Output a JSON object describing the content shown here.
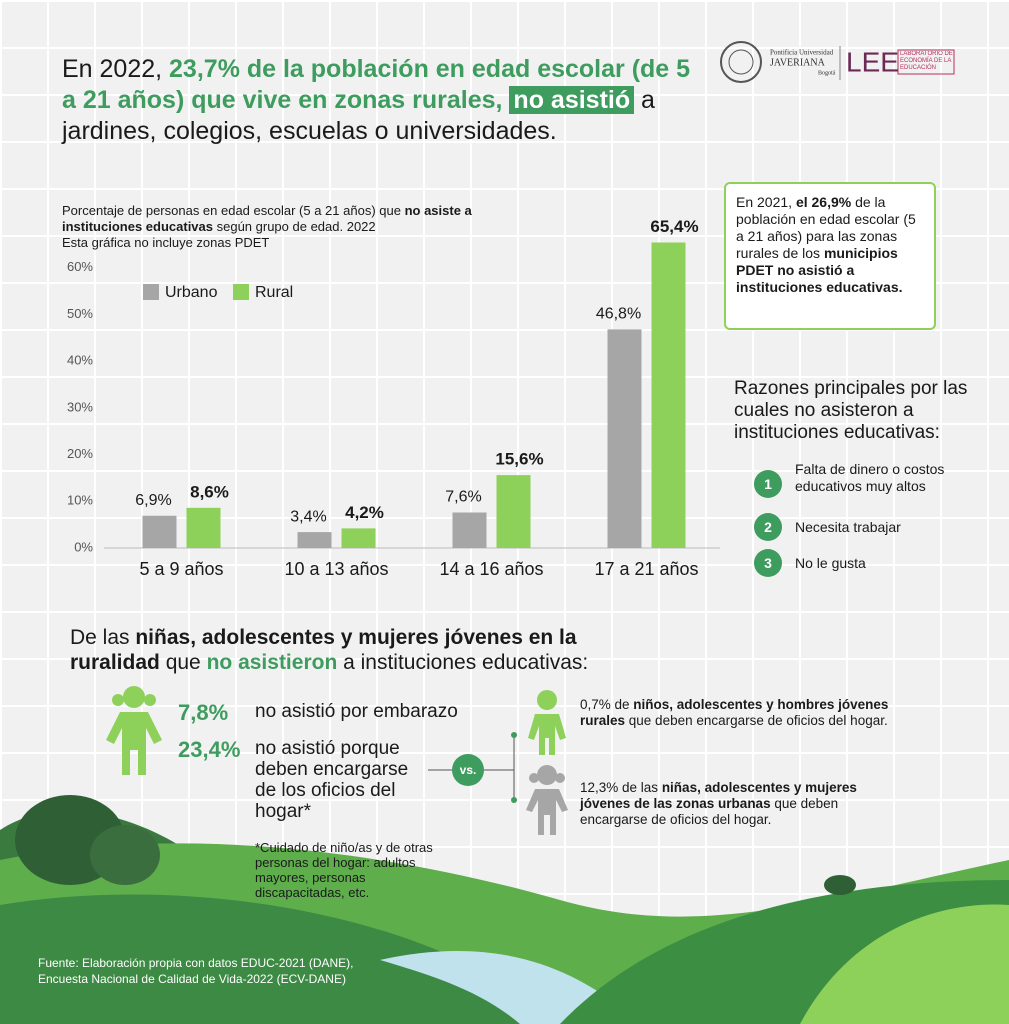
{
  "header": {
    "title_parts": [
      "En 2022, ",
      "23,7% de la población en edad escolar (de 5 a 21 años) que vive en zonas rurales,",
      "no asistió",
      " a jardines, colegios, escuelas o universidades."
    ]
  },
  "logos": {
    "university_top": "Pontificia Universidad",
    "university": "JAVERIANA",
    "city": "Bogotá",
    "lab": "LEE",
    "lab_name": "LABORATORIO DE ECONOMÍA DE LA EDUCACIÓN"
  },
  "chart_data": {
    "type": "bar",
    "subtitle_parts": [
      "Porcentaje de personas en edad escolar (5 a 21 años) que ",
      "no asiste a instituciones educativas",
      " según grupo de edad. 2022"
    ],
    "note": "Esta gráfica no incluye zonas PDET",
    "categories": [
      "5 a 9 años",
      "10 a 13 años",
      "14 a 16 años",
      "17 a 21 años"
    ],
    "series": [
      {
        "name": "Urbano",
        "color": "#a6a6a6",
        "values": [
          6.9,
          3.4,
          7.6,
          46.8
        ],
        "value_labels": [
          "6,9%",
          "3,4%",
          "7,6%",
          "46,8%"
        ]
      },
      {
        "name": "Rural",
        "color": "#8ed15a",
        "values": [
          8.6,
          4.2,
          15.6,
          65.4
        ],
        "value_labels": [
          "8,6%",
          "4,2%",
          "15,6%",
          "65,4%"
        ]
      }
    ],
    "ylim": [
      0,
      70
    ],
    "yticks": [
      {
        "value": 0,
        "label": "0%"
      },
      {
        "value": 10,
        "label": "10%"
      },
      {
        "value": 20,
        "label": "20%"
      },
      {
        "value": 30,
        "label": "30%"
      },
      {
        "value": 40,
        "label": "40%"
      },
      {
        "value": 50,
        "label": "50%"
      },
      {
        "value": 60,
        "label": "60%"
      }
    ],
    "legend": "upper left"
  },
  "note2021": {
    "parts": [
      "En 2021, ",
      "el 26,9%",
      " de la población en edad escolar (5 a 21 años) para las zonas rurales de los ",
      "municipios PDET no asistió a instituciones educativas."
    ]
  },
  "reasons": {
    "title": "Razones principales por las cuales no asisteron a instituciones educativas:",
    "items": [
      {
        "number": "1",
        "text": "Falta de dinero o costos educativos muy altos"
      },
      {
        "number": "2",
        "text": "Necesita trabajar"
      },
      {
        "number": "3",
        "text": "No le gusta"
      }
    ]
  },
  "section2": {
    "title_parts": [
      "De las ",
      "niñas, adolescentes y mujeres jóvenes en la ruralidad",
      " que ",
      "no asistieron",
      " a instituciones educativas:"
    ],
    "stats": [
      {
        "value": "7,8%",
        "text": "no asistió por embarazo"
      },
      {
        "value": "23,4%",
        "text": "no asistió porque deben encargarse de los oficios del hogar*"
      }
    ],
    "footnote": "*Cuidado de niño/as y de otras personas del hogar: adultos mayores, personas discapacitadas, etc.",
    "vs": "vs.",
    "compare": [
      [
        "0,7% de ",
        "niños, adolescentes y hombres jóvenes rurales",
        " que deben encargarse de oficios del hogar."
      ],
      [
        "12,3% de las ",
        "niñas, adolescentes y mujeres jóvenes de las zonas urbanas",
        " que deben encargarse de oficios del hogar."
      ]
    ]
  },
  "source": "Fuente: Elaboración propia con datos EDUC-2021 (DANE), Encuesta Nacional de Calidad de Vida-2022 (ECV-DANE)"
}
